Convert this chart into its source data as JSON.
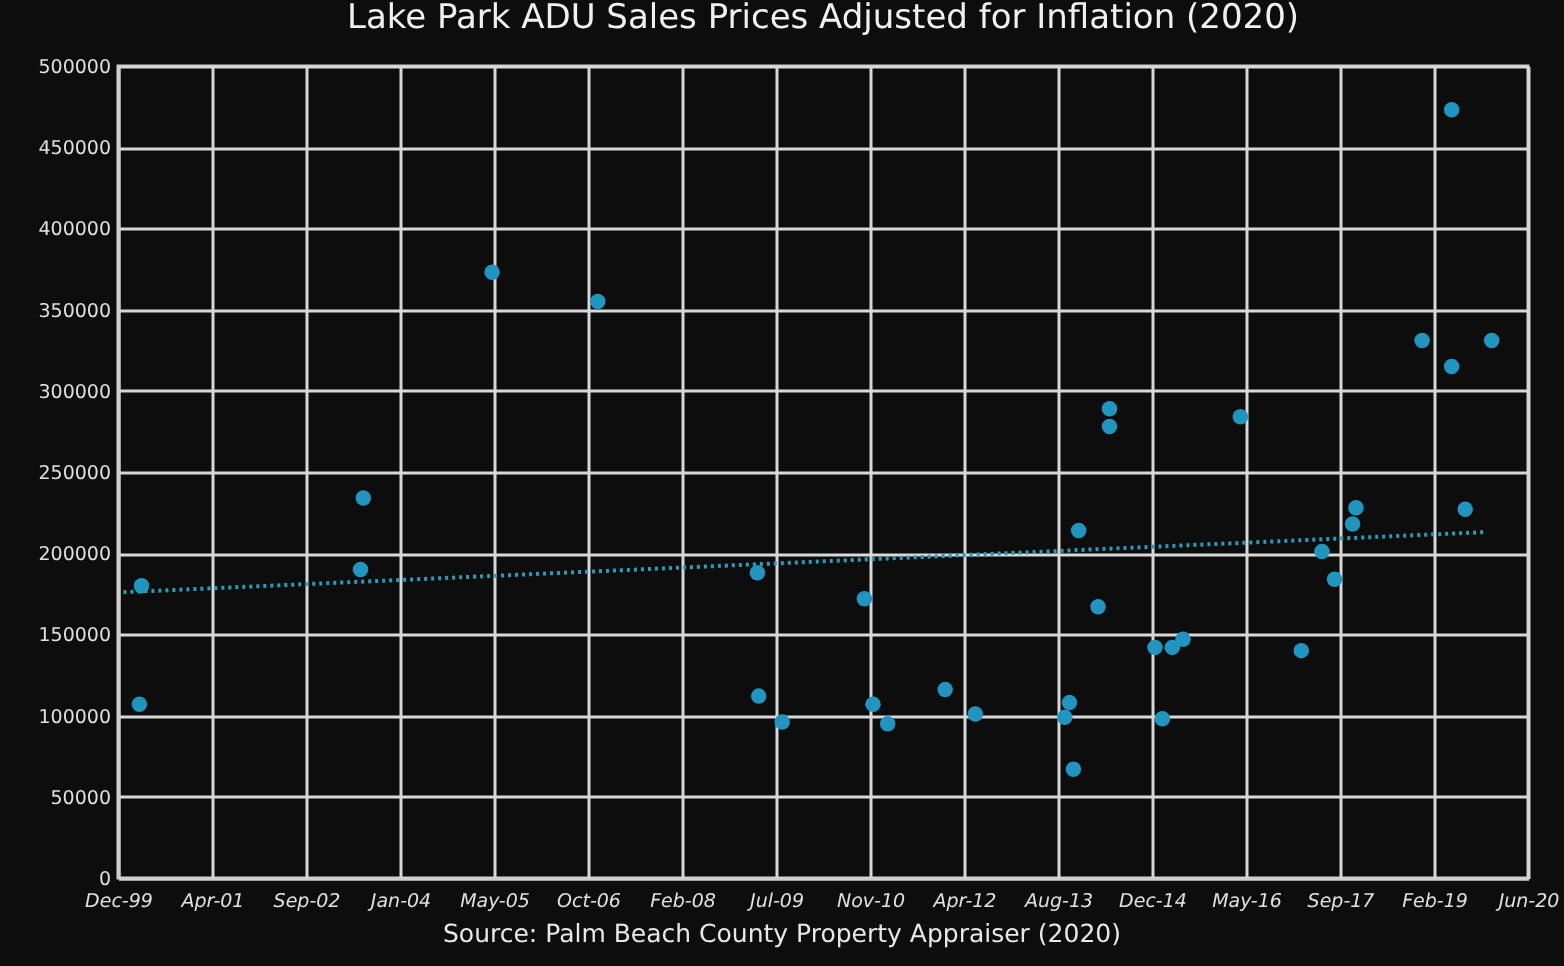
{
  "chart_data": {
    "type": "scatter",
    "title": "Lake Park ADU Sales Prices Adjusted for Inflation (2020)",
    "annotations": [
      "Source: Palm Beach County Property Appraiser (2020)"
    ],
    "xlim": [
      "1999-12-07",
      "2020-06-19"
    ],
    "xticks": [
      {
        "value": "1999-12-07",
        "label": "Dec-99"
      },
      {
        "value": "2001-04-20",
        "label": "Apr-01"
      },
      {
        "value": "2002-09-02",
        "label": "Sep-02"
      },
      {
        "value": "2004-01-15",
        "label": "Jan-04"
      },
      {
        "value": "2005-05-29",
        "label": "May-05"
      },
      {
        "value": "2006-10-11",
        "label": "Oct-06"
      },
      {
        "value": "2008-02-23",
        "label": "Feb-08"
      },
      {
        "value": "2009-07-07",
        "label": "Jul-09"
      },
      {
        "value": "2010-11-19",
        "label": "Nov-10"
      },
      {
        "value": "2012-04-02",
        "label": "Apr-12"
      },
      {
        "value": "2013-08-15",
        "label": "Aug-13"
      },
      {
        "value": "2014-12-28",
        "label": "Dec-14"
      },
      {
        "value": "2016-05-11",
        "label": "May-16"
      },
      {
        "value": "2017-09-23",
        "label": "Sep-17"
      },
      {
        "value": "2019-02-05",
        "label": "Feb-19"
      },
      {
        "value": "2020-06-19",
        "label": "Jun-20"
      }
    ],
    "ylim": [
      0,
      500000
    ],
    "yticks": [
      0,
      50000,
      100000,
      150000,
      200000,
      250000,
      300000,
      350000,
      400000,
      450000,
      500000
    ],
    "grid": true,
    "marker": "circle",
    "series": [
      {
        "color": "#1f95c0",
        "x": [
          "2000-04-10",
          "2000-03-30",
          "2003-07-04",
          "2003-06-19",
          "2005-05-19",
          "2006-12-02",
          "2009-03-30",
          "2009-04-06",
          "2009-08-09",
          "2010-10-20",
          "2010-12-05",
          "2011-02-21",
          "2011-12-24",
          "2012-06-01",
          "2013-10-15",
          "2013-09-20",
          "2013-11-05",
          "2013-12-03",
          "2014-03-16",
          "2014-05-16",
          "2014-05-16",
          "2015-01-13",
          "2015-02-21",
          "2015-04-15",
          "2015-06-11",
          "2016-04-11",
          "2017-03-01",
          "2017-06-19",
          "2017-08-25",
          "2017-11-29",
          "2017-12-17",
          "2018-12-04",
          "2019-05-10",
          "2019-05-10",
          "2019-07-21",
          "2019-12-09"
        ],
        "values": [
          180000,
          107000,
          234000,
          190000,
          373000,
          355000,
          188000,
          112000,
          96000,
          172000,
          107000,
          95000,
          116000,
          101000,
          108000,
          99000,
          67000,
          214000,
          167000,
          289000,
          278000,
          142000,
          98000,
          142000,
          147000,
          284000,
          140000,
          201000,
          184000,
          218000,
          228000,
          331000,
          473000,
          315000,
          227000,
          331000
        ]
      },
      {
        "type": "line",
        "line_style": "dotted",
        "marker": "none",
        "color": "#2a9cb8",
        "x": [
          "2000-01-05",
          "2019-11-07"
        ],
        "values": [
          176000,
          213000
        ]
      }
    ]
  }
}
